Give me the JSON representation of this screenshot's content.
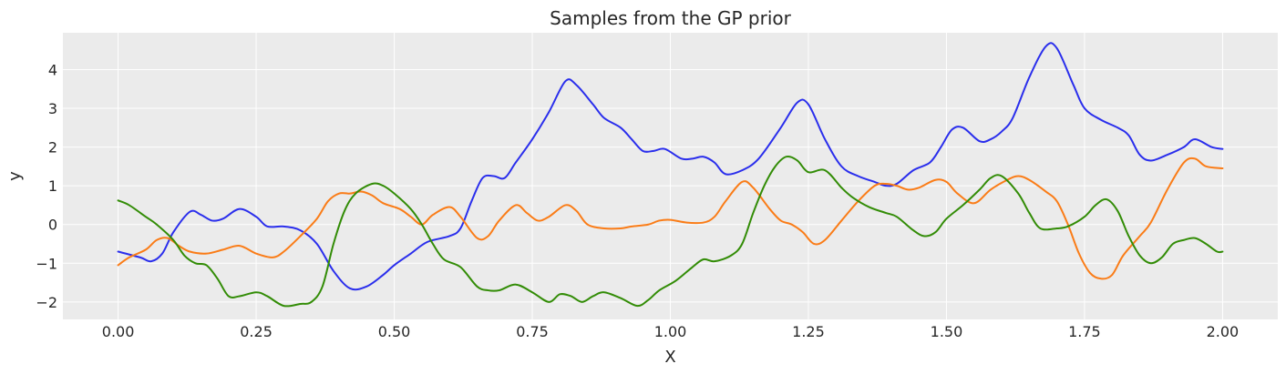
{
  "chart_data": {
    "type": "line",
    "title": "Samples from the GP prior",
    "xlabel": "X",
    "ylabel": "y",
    "xlim": [
      -0.1,
      2.1
    ],
    "ylim": [
      -2.45,
      4.95
    ],
    "grid": true,
    "background": "#ebebeb",
    "grid_color": "#ffffff",
    "x_ticks": [
      0.0,
      0.25,
      0.5,
      0.75,
      1.0,
      1.25,
      1.5,
      1.75,
      2.0
    ],
    "x_tick_labels": [
      "0.00",
      "0.25",
      "0.50",
      "0.75",
      "1.00",
      "1.25",
      "1.50",
      "1.75",
      "2.00"
    ],
    "y_ticks": [
      -2,
      -1,
      0,
      1,
      2,
      3,
      4
    ],
    "y_tick_labels": [
      "−2",
      "−1",
      "0",
      "1",
      "2",
      "3",
      "4"
    ],
    "series": [
      {
        "color": "#2a2eec",
        "points": [
          [
            0.0,
            -0.7
          ],
          [
            0.04,
            -0.85
          ],
          [
            0.06,
            -0.95
          ],
          [
            0.08,
            -0.75
          ],
          [
            0.1,
            -0.2
          ],
          [
            0.13,
            0.33
          ],
          [
            0.15,
            0.25
          ],
          [
            0.17,
            0.1
          ],
          [
            0.19,
            0.15
          ],
          [
            0.22,
            0.4
          ],
          [
            0.25,
            0.2
          ],
          [
            0.27,
            -0.05
          ],
          [
            0.3,
            -0.05
          ],
          [
            0.33,
            -0.15
          ],
          [
            0.36,
            -0.5
          ],
          [
            0.39,
            -1.2
          ],
          [
            0.42,
            -1.65
          ],
          [
            0.45,
            -1.6
          ],
          [
            0.48,
            -1.3
          ],
          [
            0.5,
            -1.05
          ],
          [
            0.53,
            -0.75
          ],
          [
            0.56,
            -0.45
          ],
          [
            0.6,
            -0.3
          ],
          [
            0.62,
            -0.1
          ],
          [
            0.64,
            0.6
          ],
          [
            0.66,
            1.2
          ],
          [
            0.68,
            1.25
          ],
          [
            0.7,
            1.2
          ],
          [
            0.72,
            1.6
          ],
          [
            0.75,
            2.2
          ],
          [
            0.78,
            2.9
          ],
          [
            0.81,
            3.7
          ],
          [
            0.83,
            3.6
          ],
          [
            0.86,
            3.1
          ],
          [
            0.88,
            2.75
          ],
          [
            0.91,
            2.5
          ],
          [
            0.93,
            2.2
          ],
          [
            0.95,
            1.9
          ],
          [
            0.97,
            1.9
          ],
          [
            0.99,
            1.95
          ],
          [
            1.02,
            1.7
          ],
          [
            1.04,
            1.7
          ],
          [
            1.06,
            1.75
          ],
          [
            1.08,
            1.6
          ],
          [
            1.1,
            1.3
          ],
          [
            1.13,
            1.4
          ],
          [
            1.16,
            1.7
          ],
          [
            1.2,
            2.5
          ],
          [
            1.23,
            3.15
          ],
          [
            1.25,
            3.1
          ],
          [
            1.28,
            2.2
          ],
          [
            1.31,
            1.5
          ],
          [
            1.34,
            1.25
          ],
          [
            1.37,
            1.1
          ],
          [
            1.39,
            1.0
          ],
          [
            1.41,
            1.05
          ],
          [
            1.44,
            1.4
          ],
          [
            1.47,
            1.6
          ],
          [
            1.49,
            2.0
          ],
          [
            1.51,
            2.45
          ],
          [
            1.53,
            2.5
          ],
          [
            1.56,
            2.15
          ],
          [
            1.58,
            2.2
          ],
          [
            1.6,
            2.4
          ],
          [
            1.62,
            2.75
          ],
          [
            1.65,
            3.8
          ],
          [
            1.68,
            4.6
          ],
          [
            1.7,
            4.55
          ],
          [
            1.73,
            3.6
          ],
          [
            1.75,
            3.0
          ],
          [
            1.78,
            2.7
          ],
          [
            1.81,
            2.5
          ],
          [
            1.83,
            2.3
          ],
          [
            1.85,
            1.8
          ],
          [
            1.87,
            1.65
          ],
          [
            1.9,
            1.8
          ],
          [
            1.93,
            2.0
          ],
          [
            1.95,
            2.2
          ],
          [
            1.98,
            2.0
          ],
          [
            2.0,
            1.95
          ]
        ]
      },
      {
        "color": "#fa7c17",
        "points": [
          [
            0.0,
            -1.05
          ],
          [
            0.02,
            -0.85
          ],
          [
            0.05,
            -0.65
          ],
          [
            0.07,
            -0.4
          ],
          [
            0.09,
            -0.35
          ],
          [
            0.11,
            -0.55
          ],
          [
            0.13,
            -0.7
          ],
          [
            0.16,
            -0.75
          ],
          [
            0.19,
            -0.65
          ],
          [
            0.22,
            -0.55
          ],
          [
            0.25,
            -0.75
          ],
          [
            0.28,
            -0.85
          ],
          [
            0.3,
            -0.7
          ],
          [
            0.33,
            -0.3
          ],
          [
            0.36,
            0.15
          ],
          [
            0.38,
            0.6
          ],
          [
            0.4,
            0.8
          ],
          [
            0.42,
            0.8
          ],
          [
            0.44,
            0.85
          ],
          [
            0.46,
            0.75
          ],
          [
            0.48,
            0.55
          ],
          [
            0.51,
            0.4
          ],
          [
            0.53,
            0.2
          ],
          [
            0.55,
            0.0
          ],
          [
            0.57,
            0.25
          ],
          [
            0.6,
            0.45
          ],
          [
            0.62,
            0.2
          ],
          [
            0.65,
            -0.35
          ],
          [
            0.67,
            -0.3
          ],
          [
            0.69,
            0.1
          ],
          [
            0.72,
            0.5
          ],
          [
            0.74,
            0.3
          ],
          [
            0.76,
            0.1
          ],
          [
            0.78,
            0.2
          ],
          [
            0.81,
            0.5
          ],
          [
            0.83,
            0.35
          ],
          [
            0.85,
            0.0
          ],
          [
            0.88,
            -0.1
          ],
          [
            0.91,
            -0.1
          ],
          [
            0.93,
            -0.05
          ],
          [
            0.96,
            0.0
          ],
          [
            0.98,
            0.1
          ],
          [
            1.0,
            0.12
          ],
          [
            1.03,
            0.05
          ],
          [
            1.06,
            0.05
          ],
          [
            1.08,
            0.2
          ],
          [
            1.1,
            0.6
          ],
          [
            1.13,
            1.1
          ],
          [
            1.15,
            0.95
          ],
          [
            1.18,
            0.4
          ],
          [
            1.2,
            0.1
          ],
          [
            1.22,
            0.0
          ],
          [
            1.24,
            -0.2
          ],
          [
            1.26,
            -0.5
          ],
          [
            1.28,
            -0.4
          ],
          [
            1.31,
            0.1
          ],
          [
            1.34,
            0.6
          ],
          [
            1.37,
            1.0
          ],
          [
            1.39,
            1.05
          ],
          [
            1.41,
            1.0
          ],
          [
            1.43,
            0.9
          ],
          [
            1.45,
            0.95
          ],
          [
            1.48,
            1.15
          ],
          [
            1.5,
            1.1
          ],
          [
            1.52,
            0.8
          ],
          [
            1.55,
            0.55
          ],
          [
            1.58,
            0.9
          ],
          [
            1.61,
            1.15
          ],
          [
            1.63,
            1.25
          ],
          [
            1.65,
            1.15
          ],
          [
            1.68,
            0.85
          ],
          [
            1.7,
            0.6
          ],
          [
            1.72,
            0.0
          ],
          [
            1.74,
            -0.75
          ],
          [
            1.76,
            -1.25
          ],
          [
            1.78,
            -1.4
          ],
          [
            1.8,
            -1.3
          ],
          [
            1.82,
            -0.8
          ],
          [
            1.85,
            -0.3
          ],
          [
            1.87,
            0.05
          ],
          [
            1.9,
            0.9
          ],
          [
            1.93,
            1.6
          ],
          [
            1.95,
            1.7
          ],
          [
            1.97,
            1.5
          ],
          [
            2.0,
            1.45
          ]
        ]
      },
      {
        "color": "#328c06",
        "points": [
          [
            0.0,
            0.62
          ],
          [
            0.02,
            0.5
          ],
          [
            0.05,
            0.2
          ],
          [
            0.07,
            0.0
          ],
          [
            0.1,
            -0.4
          ],
          [
            0.12,
            -0.8
          ],
          [
            0.14,
            -1.0
          ],
          [
            0.16,
            -1.05
          ],
          [
            0.18,
            -1.4
          ],
          [
            0.2,
            -1.85
          ],
          [
            0.22,
            -1.85
          ],
          [
            0.25,
            -1.75
          ],
          [
            0.27,
            -1.85
          ],
          [
            0.3,
            -2.1
          ],
          [
            0.33,
            -2.05
          ],
          [
            0.35,
            -2.0
          ],
          [
            0.37,
            -1.6
          ],
          [
            0.39,
            -0.5
          ],
          [
            0.41,
            0.35
          ],
          [
            0.43,
            0.8
          ],
          [
            0.46,
            1.05
          ],
          [
            0.48,
            1.0
          ],
          [
            0.5,
            0.8
          ],
          [
            0.53,
            0.4
          ],
          [
            0.55,
            0.0
          ],
          [
            0.57,
            -0.5
          ],
          [
            0.59,
            -0.9
          ],
          [
            0.62,
            -1.1
          ],
          [
            0.65,
            -1.6
          ],
          [
            0.67,
            -1.7
          ],
          [
            0.69,
            -1.7
          ],
          [
            0.72,
            -1.55
          ],
          [
            0.75,
            -1.75
          ],
          [
            0.78,
            -2.0
          ],
          [
            0.8,
            -1.8
          ],
          [
            0.82,
            -1.85
          ],
          [
            0.84,
            -2.0
          ],
          [
            0.86,
            -1.85
          ],
          [
            0.88,
            -1.75
          ],
          [
            0.91,
            -1.9
          ],
          [
            0.94,
            -2.1
          ],
          [
            0.96,
            -1.95
          ],
          [
            0.98,
            -1.7
          ],
          [
            1.01,
            -1.45
          ],
          [
            1.04,
            -1.1
          ],
          [
            1.06,
            -0.9
          ],
          [
            1.08,
            -0.95
          ],
          [
            1.11,
            -0.8
          ],
          [
            1.13,
            -0.5
          ],
          [
            1.15,
            0.3
          ],
          [
            1.17,
            1.0
          ],
          [
            1.19,
            1.5
          ],
          [
            1.21,
            1.75
          ],
          [
            1.23,
            1.65
          ],
          [
            1.25,
            1.35
          ],
          [
            1.28,
            1.4
          ],
          [
            1.31,
            0.95
          ],
          [
            1.33,
            0.7
          ],
          [
            1.36,
            0.45
          ],
          [
            1.39,
            0.3
          ],
          [
            1.41,
            0.2
          ],
          [
            1.44,
            -0.15
          ],
          [
            1.46,
            -0.3
          ],
          [
            1.48,
            -0.2
          ],
          [
            1.5,
            0.15
          ],
          [
            1.53,
            0.5
          ],
          [
            1.56,
            0.9
          ],
          [
            1.58,
            1.2
          ],
          [
            1.6,
            1.25
          ],
          [
            1.63,
            0.8
          ],
          [
            1.65,
            0.3
          ],
          [
            1.67,
            -0.1
          ],
          [
            1.7,
            -0.1
          ],
          [
            1.72,
            -0.05
          ],
          [
            1.75,
            0.2
          ],
          [
            1.77,
            0.5
          ],
          [
            1.79,
            0.65
          ],
          [
            1.81,
            0.35
          ],
          [
            1.83,
            -0.3
          ],
          [
            1.85,
            -0.8
          ],
          [
            1.87,
            -1.0
          ],
          [
            1.89,
            -0.85
          ],
          [
            1.91,
            -0.5
          ],
          [
            1.93,
            -0.4
          ],
          [
            1.95,
            -0.35
          ],
          [
            1.97,
            -0.5
          ],
          [
            1.99,
            -0.7
          ],
          [
            2.0,
            -0.7
          ]
        ]
      }
    ]
  }
}
